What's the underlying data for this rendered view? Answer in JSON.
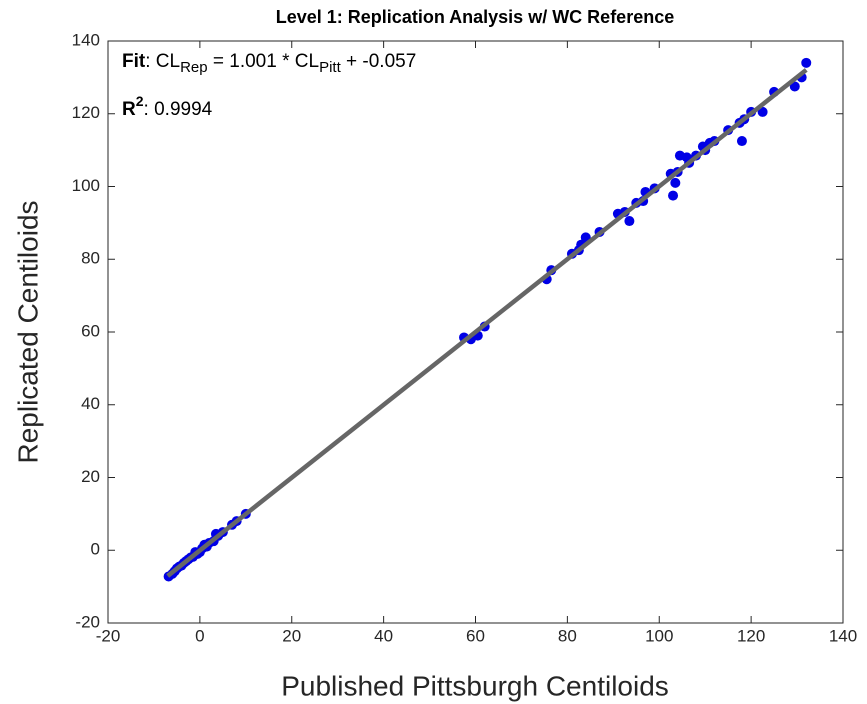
{
  "chart_data": {
    "type": "scatter",
    "title": "Level 1: Replication Analysis w/ WC Reference",
    "xlabel": "Published Pittsburgh Centiloids",
    "ylabel": "Replicated Centiloids",
    "xlim": [
      -20,
      140
    ],
    "ylim": [
      -20,
      140
    ],
    "xticks": [
      -20,
      0,
      20,
      40,
      60,
      80,
      100,
      120,
      140
    ],
    "yticks": [
      -20,
      0,
      20,
      40,
      60,
      80,
      100,
      120,
      140
    ],
    "color": "#0000e6",
    "fit_color": "#666666",
    "fit": {
      "head": "Fit",
      "sep": ": CL",
      "y_sub": "Rep",
      "eq": " = ",
      "slope": 1.001,
      "times": " * CL",
      "x_sub": "Pitt",
      "plus": " + ",
      "intercept": -0.057,
      "xlim": [
        -7,
        132
      ]
    },
    "r2": {
      "head": "R",
      "sup": "2",
      "sep": ": ",
      "value": 0.9994
    },
    "x": [
      -6.8,
      -6,
      -5.5,
      -5,
      -4.5,
      -4,
      -3.5,
      -3,
      -2.5,
      -2,
      -1.5,
      -1,
      -0.5,
      0,
      0.5,
      1,
      1.5,
      2,
      3,
      3.5,
      4,
      5,
      7,
      8,
      10,
      57.5,
      59,
      60.5,
      62,
      75.5,
      76.5,
      81,
      82.5,
      83,
      84,
      87,
      91,
      92.5,
      93.5,
      95,
      96.5,
      97,
      99,
      102.5,
      103,
      103.5,
      104,
      104.5,
      106,
      106.5,
      108,
      109.5,
      110,
      111,
      112,
      115,
      117.5,
      118,
      118.5,
      120,
      122.5,
      125,
      129.5,
      131,
      132
    ],
    "y": [
      -7.2,
      -6.5,
      -5.8,
      -5,
      -4.5,
      -4.2,
      -3.5,
      -3,
      -2.5,
      -2,
      -1.8,
      -0.5,
      -1,
      -0.5,
      0.5,
      1.5,
      1,
      2,
      2.5,
      4.5,
      4,
      5,
      7,
      8,
      10,
      58.5,
      58,
      59,
      61.5,
      74.5,
      77,
      81.5,
      82.5,
      84,
      86,
      87.5,
      92.5,
      93,
      90.5,
      95.5,
      96,
      98.5,
      99.5,
      103.5,
      97.5,
      101,
      104,
      108.5,
      108,
      106.5,
      108.5,
      111,
      110,
      112,
      112.5,
      115.5,
      117.5,
      112.5,
      118.5,
      120.5,
      120.5,
      126,
      127.5,
      130,
      134
    ]
  }
}
